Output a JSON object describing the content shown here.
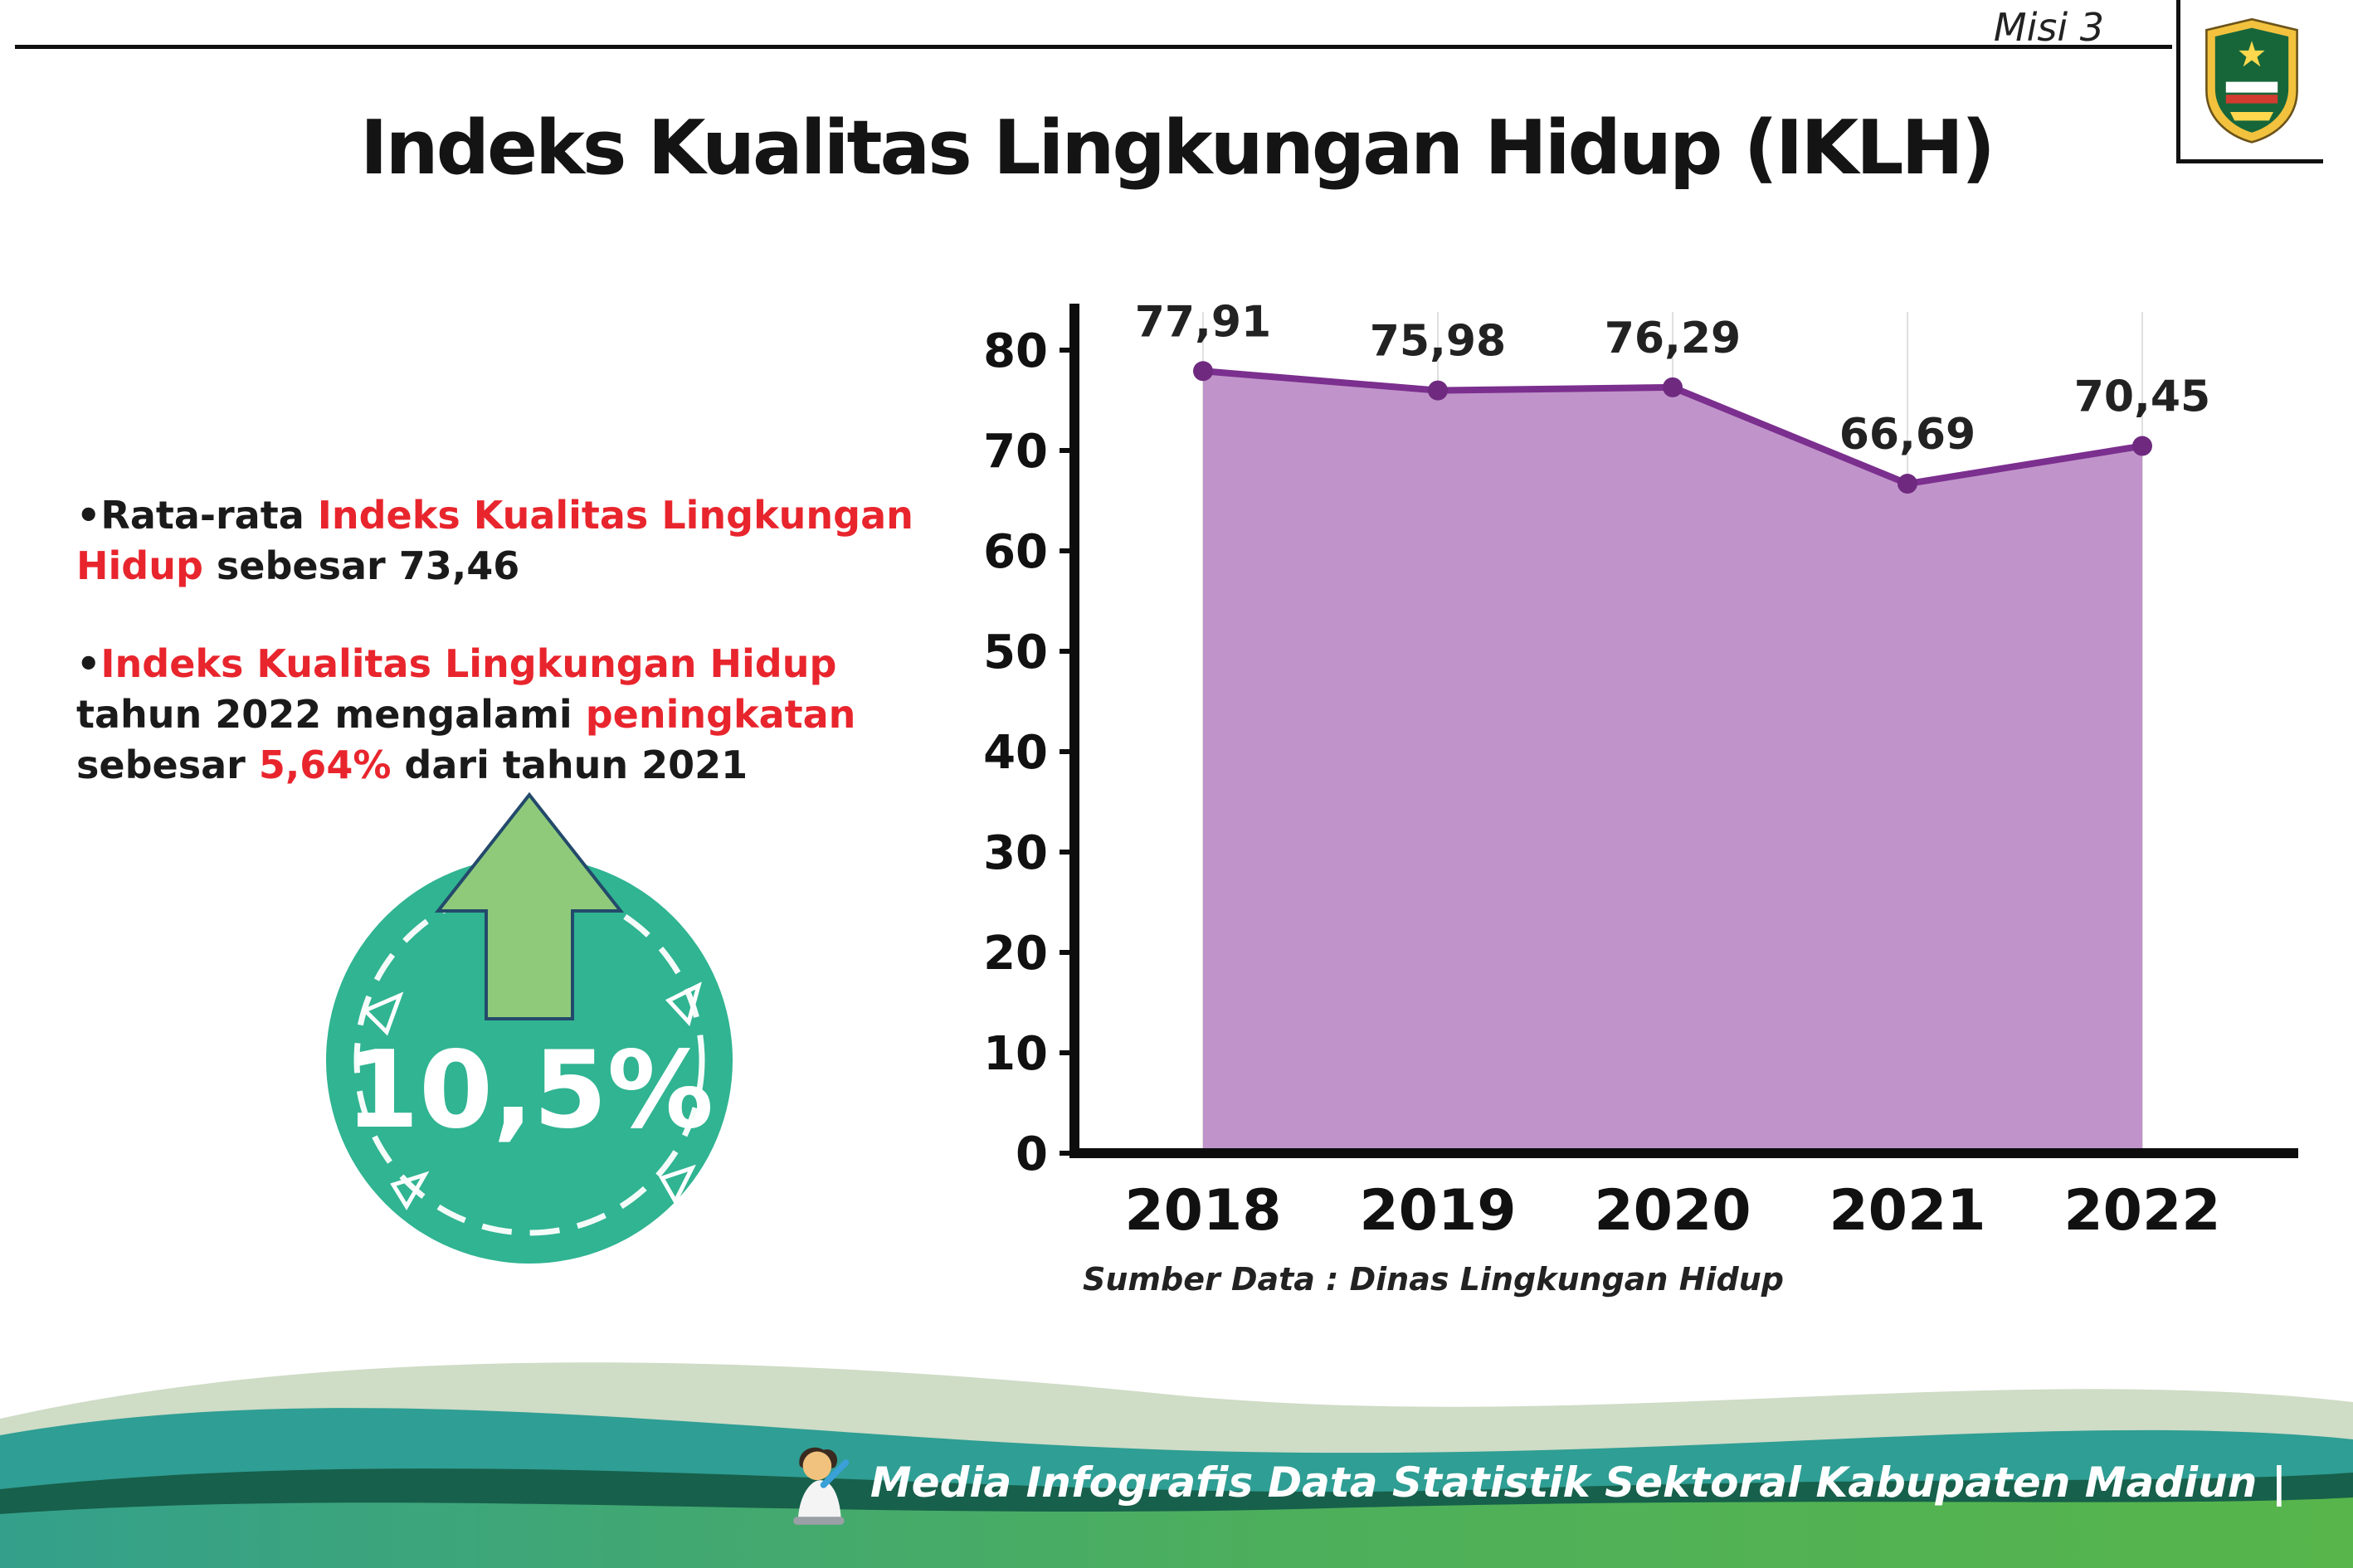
{
  "header": {
    "misi_label": "Misi 3",
    "title": "Indeks Kualitas Lingkungan Hidup (IKLH)",
    "logo_name": "kabupaten-madiun-logo"
  },
  "bullets": {
    "marker": "•",
    "item1": {
      "part1": "Rata-rata ",
      "part2": "Indeks Kualitas Lingkungan Hidup",
      "part3": " sebesar 73,46"
    },
    "item2": {
      "part1": "Indeks Kualitas Lingkungan Hidup",
      "part2": " tahun 2022 mengalami ",
      "part3": "peningkatan",
      "part4": " sebesar ",
      "part5": "5,64%",
      "part6": " dari tahun 2021"
    }
  },
  "badge": {
    "value": "10,5%"
  },
  "chart_data": {
    "type": "area",
    "title": "",
    "categories": [
      "2018",
      "2019",
      "2020",
      "2021",
      "2022"
    ],
    "values": [
      77.91,
      75.98,
      76.29,
      66.69,
      70.45
    ],
    "value_labels": [
      "77,91",
      "75,98",
      "76,29",
      "66,69",
      "70,45"
    ],
    "ylim": [
      0,
      80
    ],
    "yticks": [
      0,
      10,
      20,
      30,
      40,
      50,
      60,
      70,
      80
    ],
    "grid": "vertical-light",
    "legend": "none",
    "area_color": "#c094ca",
    "line_color": "#7b2f8e",
    "point_color": "#6f2a80",
    "source": "Sumber Data : Dinas Lingkungan Hidup"
  },
  "footer": {
    "text": "Media Infografis Data Statistik Sektoral Kabupaten Madiun |"
  },
  "colors": {
    "accent_red": "#e8252d",
    "badge_teal": "#30b492",
    "arrow_green": "#8fca7b",
    "wave_teal": "#2f9e94",
    "wave_dark_green": "#17604b",
    "wave_green": "#57b54b",
    "wave_sage": "#cfdcc6"
  }
}
